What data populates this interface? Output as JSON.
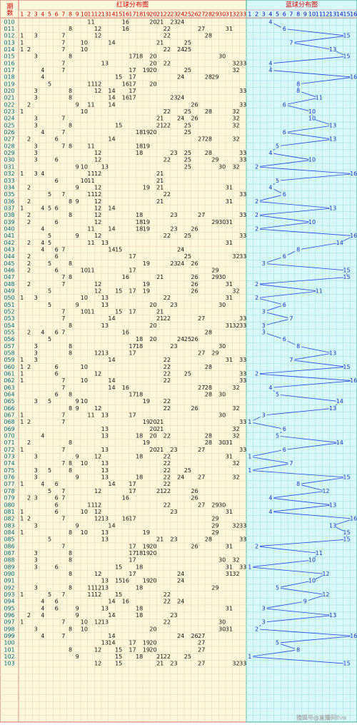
{
  "header": {
    "issue_label": "期数",
    "red_title": "红球分布图",
    "blue_title": "蓝球分布图",
    "red_columns": [
      1,
      2,
      3,
      4,
      5,
      6,
      7,
      8,
      9,
      10,
      11,
      12,
      13,
      14,
      15,
      16,
      17,
      18,
      19,
      20,
      21,
      22,
      23,
      24,
      25,
      26,
      27,
      28,
      29,
      30,
      31,
      32,
      33
    ],
    "blue_columns": [
      1,
      2,
      3,
      4,
      5,
      6,
      7,
      8,
      9,
      10,
      11,
      12,
      13,
      14,
      15,
      16
    ]
  },
  "rows": [
    {
      "issue": "010",
      "red": [
        11,
        16,
        20,
        21,
        23,
        24
      ],
      "blue": 4
    },
    {
      "issue": "011",
      "red": [
        8,
        12,
        16,
        22,
        27,
        31
      ],
      "blue": 6
    },
    {
      "issue": "012",
      "red": [
        1,
        3,
        7,
        12,
        22,
        28
      ],
      "blue": 15
    },
    {
      "issue": "013",
      "red": [
        1,
        7,
        10,
        14,
        21,
        25
      ],
      "blue": 7
    },
    {
      "issue": "014",
      "red": [
        1,
        2,
        7,
        10,
        22,
        24,
        25
      ],
      "blue": 13
    },
    {
      "issue": "015",
      "red": [
        3,
        8,
        17,
        18,
        20,
        30
      ],
      "blue": 15
    },
    {
      "issue": "016",
      "red": [
        7,
        13,
        20,
        22,
        32,
        33
      ],
      "blue": 4
    },
    {
      "issue": "017",
      "red": [
        4,
        7,
        17,
        19,
        20,
        25,
        32
      ],
      "blue": 4
    },
    {
      "issue": "018",
      "red": [
        4,
        15,
        17,
        24,
        28,
        29
      ],
      "blue": 16
    },
    {
      "issue": "019",
      "red": [
        5,
        11,
        12,
        16,
        17,
        20
      ],
      "blue": 8
    },
    {
      "issue": "020",
      "red": [
        3,
        8,
        12,
        14,
        17,
        33
      ],
      "blue": 8
    },
    {
      "issue": "021",
      "red": [
        3,
        8,
        14,
        16,
        17,
        23,
        24
      ],
      "blue": 11
    },
    {
      "issue": "022",
      "red": [
        2,
        9,
        11,
        14,
        26,
        33
      ],
      "blue": 6
    },
    {
      "issue": "023",
      "red": [
        1,
        10,
        22,
        25,
        28,
        32
      ],
      "blue": 10
    },
    {
      "issue": "024",
      "red": [
        3,
        7,
        21,
        24,
        26,
        32
      ],
      "blue": 10
    },
    {
      "issue": "025",
      "red": [
        3,
        8,
        15,
        21,
        22,
        25,
        32
      ],
      "blue": 13
    },
    {
      "issue": "026",
      "red": [
        4,
        7,
        18,
        19,
        20,
        25
      ],
      "blue": 6
    },
    {
      "issue": "027",
      "red": [
        2,
        6,
        14,
        27,
        28,
        32
      ],
      "blue": 13
    },
    {
      "issue": "028",
      "red": [
        3,
        7,
        8,
        11,
        18,
        19
      ],
      "blue": 5
    },
    {
      "issue": "029",
      "red": [
        3,
        12,
        18,
        23,
        25,
        28,
        33
      ],
      "blue": 4
    },
    {
      "issue": "030",
      "red": [
        3,
        6,
        12,
        22,
        25,
        29,
        33
      ],
      "blue": 10
    },
    {
      "issue": "031",
      "red": [
        9,
        10,
        13,
        25,
        30,
        32
      ],
      "blue": 2
    },
    {
      "issue": "032",
      "red": [
        1,
        3,
        4,
        11,
        12,
        21
      ],
      "blue": 16
    },
    {
      "issue": "033",
      "red": [
        6,
        10,
        11,
        21
      ],
      "blue": 5
    },
    {
      "issue": "034",
      "red": [
        2,
        9,
        12,
        19,
        21,
        31
      ],
      "blue": 4
    },
    {
      "issue": "035",
      "red": [
        5,
        7,
        11,
        12,
        22,
        33
      ],
      "blue": 6
    },
    {
      "issue": "036",
      "red": [
        2,
        8,
        9,
        12,
        21,
        31
      ],
      "blue": 2
    },
    {
      "issue": "037",
      "red": [
        1,
        4,
        5,
        6,
        12,
        14
      ],
      "blue": 13
    },
    {
      "issue": "038",
      "red": [
        2,
        8,
        12,
        18,
        23,
        27,
        33
      ],
      "blue": 2
    },
    {
      "issue": "039",
      "red": [
        2,
        6,
        12,
        18,
        19,
        29,
        30,
        31
      ],
      "blue": 10
    },
    {
      "issue": "040",
      "red": [
        4,
        11,
        14,
        18,
        19,
        23,
        26
      ],
      "blue": 2
    },
    {
      "issue": "041",
      "red": [
        5,
        9,
        12,
        22,
        25,
        33
      ],
      "blue": 16
    },
    {
      "issue": "042",
      "red": [
        2,
        4,
        5,
        11,
        13,
        31
      ],
      "blue": 14
    },
    {
      "issue": "043",
      "red": [
        4,
        6,
        7,
        14,
        15,
        24
      ],
      "blue": 8
    },
    {
      "issue": "044",
      "red": [
        2,
        6,
        17,
        25,
        32,
        33
      ],
      "blue": 6
    },
    {
      "issue": "045",
      "red": [
        2,
        5,
        8,
        19,
        23,
        24,
        26
      ],
      "blue": 3
    },
    {
      "issue": "046",
      "red": [
        2,
        6,
        10,
        11,
        17,
        29
      ],
      "blue": 15
    },
    {
      "issue": "047",
      "red": [
        7,
        8,
        16,
        21,
        26,
        29,
        30
      ],
      "blue": 15
    },
    {
      "issue": "048",
      "red": [
        2,
        7,
        12,
        19,
        26,
        31
      ],
      "blue": 2
    },
    {
      "issue": "049",
      "red": [
        5,
        12,
        15,
        17,
        19,
        26,
        32
      ],
      "blue": 11
    },
    {
      "issue": "050",
      "red": [
        1,
        3,
        10,
        13,
        22,
        31
      ],
      "blue": 2
    },
    {
      "issue": "051",
      "red": [
        5,
        9,
        13,
        20,
        23,
        30
      ],
      "blue": 6
    },
    {
      "issue": "052",
      "red": [
        7,
        10,
        11,
        15,
        17,
        21
      ],
      "blue": 3
    },
    {
      "issue": "053",
      "red": [
        7,
        14,
        21,
        22,
        27,
        33
      ],
      "blue": 7
    },
    {
      "issue": "054",
      "red": [
        8,
        13,
        20,
        31,
        32,
        33
      ],
      "blue": 3
    },
    {
      "issue": "055",
      "red": [
        2,
        4,
        6,
        7,
        16,
        28
      ],
      "blue": 3
    },
    {
      "issue": "056",
      "red": [
        5,
        18,
        20,
        24,
        25,
        26
      ],
      "blue": 6
    },
    {
      "issue": "057",
      "red": [
        3,
        8,
        17,
        18,
        23,
        30
      ],
      "blue": 8
    },
    {
      "issue": "058",
      "red": [
        3,
        8,
        12,
        13,
        17,
        27,
        29
      ],
      "blue": 13
    },
    {
      "issue": "059",
      "red": [
        1,
        3,
        14,
        22,
        31,
        33
      ],
      "blue": 7
    },
    {
      "issue": "060",
      "red": [
        1,
        2,
        6,
        10,
        22,
        28
      ],
      "blue": 15
    },
    {
      "issue": "061",
      "red": [
        1,
        6,
        12,
        22,
        25,
        33
      ],
      "blue": 2
    },
    {
      "issue": "062",
      "red": [
        1,
        7,
        10,
        14,
        22,
        33
      ],
      "blue": 16
    },
    {
      "issue": "063",
      "red": [
        7,
        14,
        16,
        27,
        28,
        32
      ],
      "blue": 4
    },
    {
      "issue": "064",
      "red": [
        6,
        8,
        17,
        18,
        28,
        30
      ],
      "blue": 5
    },
    {
      "issue": "065",
      "red": [
        3,
        5,
        9,
        10,
        19,
        22
      ],
      "blue": 14
    },
    {
      "issue": "066",
      "red": [
        8,
        9,
        12,
        22,
        26,
        32
      ],
      "blue": 13
    },
    {
      "issue": "067",
      "red": [
        1,
        7,
        11,
        13,
        17,
        30
      ],
      "blue": 3
    },
    {
      "issue": "068",
      "red": [
        1,
        2,
        7,
        19,
        20,
        21,
        33
      ],
      "blue": 1
    },
    {
      "issue": "069",
      "red": [
        13,
        20,
        21,
        32
      ],
      "blue": 6
    },
    {
      "issue": "070",
      "red": [
        4,
        13,
        18,
        20,
        22,
        28,
        32
      ],
      "blue": 5
    },
    {
      "issue": "071",
      "red": [
        2,
        8,
        19,
        28,
        30,
        31
      ],
      "blue": 14
    },
    {
      "issue": "072",
      "red": [
        1,
        7,
        13,
        20,
        21,
        23,
        27,
        33
      ],
      "blue": 6
    },
    {
      "issue": "073",
      "red": [
        3,
        9,
        12,
        18,
        22,
        31
      ],
      "blue": 1
    },
    {
      "issue": "074",
      "red": [
        7,
        8,
        10,
        13,
        22,
        32
      ],
      "blue": 7
    },
    {
      "issue": "075",
      "red": [
        3,
        5,
        8,
        13,
        22,
        25
      ],
      "blue": 1
    },
    {
      "issue": "076",
      "red": [
        3,
        9,
        13,
        18,
        22,
        24,
        27,
        32
      ],
      "blue": 15
    },
    {
      "issue": "077",
      "red": [
        1,
        4,
        6,
        14,
        17,
        22
      ],
      "blue": 8
    },
    {
      "issue": "078",
      "red": [
        5,
        7,
        12,
        17,
        21,
        22,
        26
      ],
      "blue": 12
    },
    {
      "issue": "079",
      "red": [
        2,
        3,
        6,
        7,
        16,
        26
      ],
      "blue": 4
    },
    {
      "issue": "080",
      "red": [
        6,
        11,
        12,
        22,
        27,
        29,
        30
      ],
      "blue": 13
    },
    {
      "issue": "081",
      "red": [
        1,
        6,
        10,
        12,
        23,
        31
      ],
      "blue": 4
    },
    {
      "issue": "082",
      "red": [
        1,
        2,
        7,
        12,
        13,
        16,
        17,
        29
      ],
      "blue": 16
    },
    {
      "issue": "083",
      "red": [
        3,
        9,
        14,
        29,
        32,
        33
      ],
      "blue": 13
    },
    {
      "issue": "084",
      "red": [
        1,
        8,
        10,
        13,
        19,
        29
      ],
      "blue": 15
    },
    {
      "issue": "085",
      "red": [
        5,
        13,
        21,
        23,
        28,
        33
      ],
      "blue": 15
    },
    {
      "issue": "086",
      "red": [
        7,
        17,
        19,
        20,
        26,
        31
      ],
      "blue": 2
    },
    {
      "issue": "087",
      "red": [
        3,
        8,
        17,
        18,
        19,
        20
      ],
      "blue": 11
    },
    {
      "issue": "088",
      "red": [
        3,
        8,
        17,
        30,
        32
      ],
      "blue": 10
    },
    {
      "issue": "089",
      "red": [
        3,
        6,
        15,
        18,
        31,
        33
      ],
      "blue": 1
    },
    {
      "issue": "090",
      "red": [
        8,
        12,
        17,
        24,
        31,
        32
      ],
      "blue": 12
    },
    {
      "issue": "091",
      "red": [
        13,
        15,
        16,
        19,
        20,
        24
      ],
      "blue": 10
    },
    {
      "issue": "092",
      "red": [
        3,
        8,
        11,
        12,
        13,
        18,
        29
      ],
      "blue": 5
    },
    {
      "issue": "093",
      "red": [
        1,
        5,
        7,
        11,
        12,
        15,
        22
      ],
      "blue": 12
    },
    {
      "issue": "094",
      "red": [
        4,
        6,
        14,
        16,
        22,
        24
      ],
      "blue": 9
    },
    {
      "issue": "095",
      "red": [
        4,
        6,
        9,
        13,
        18,
        31
      ],
      "blue": 3
    },
    {
      "issue": "096",
      "red": [
        2,
        4,
        9,
        14,
        18,
        23
      ],
      "blue": 13
    },
    {
      "issue": "097",
      "red": [
        1,
        7,
        10,
        12,
        13,
        22,
        30
      ],
      "blue": 3
    },
    {
      "issue": "098",
      "red": [
        3,
        8,
        10,
        20,
        30,
        31
      ],
      "blue": 2
    },
    {
      "issue": "099",
      "red": [
        4,
        7,
        14,
        24,
        26,
        27
      ],
      "blue": 16
    },
    {
      "issue": "100",
      "red": [
        13,
        14,
        17,
        19,
        20,
        27
      ],
      "blue": 5
    },
    {
      "issue": "101",
      "red": [
        8,
        12,
        15,
        17,
        19,
        20,
        27
      ],
      "blue": 8
    },
    {
      "issue": "102",
      "red": [
        9,
        15,
        18,
        21,
        22,
        25
      ],
      "blue": 1
    },
    {
      "issue": "103",
      "red": [
        12,
        15,
        21,
        23,
        27,
        32,
        33
      ],
      "blue": 15
    }
  ],
  "footer": "搜狐号@直播间live"
}
